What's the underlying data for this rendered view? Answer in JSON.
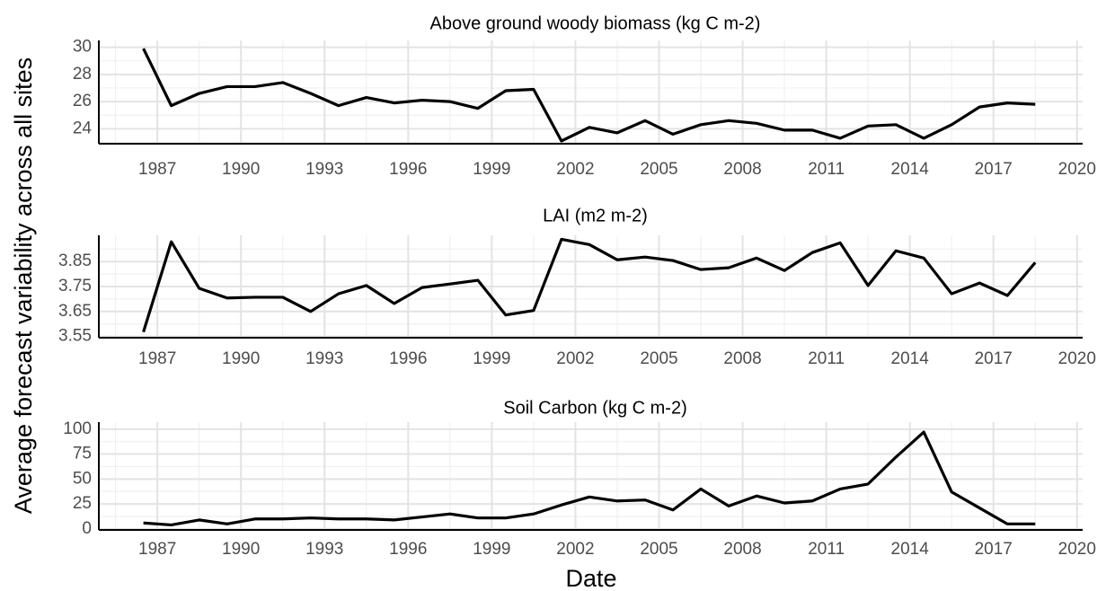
{
  "axis_labels": {
    "x": "Date",
    "y": "Average forecast variability across all sites"
  },
  "chart_data": [
    {
      "type": "line",
      "title": "Above ground woody biomass (kg C m-2)",
      "x": [
        1986.5,
        1987.5,
        1988.5,
        1989.5,
        1990.5,
        1991.5,
        1992.5,
        1993.5,
        1994.5,
        1995.5,
        1996.5,
        1997.5,
        1998.5,
        1999.5,
        2000.5,
        2001.5,
        2002.5,
        2003.5,
        2004.5,
        2005.5,
        2006.5,
        2007.5,
        2008.5,
        2009.5,
        2010.5,
        2011.5,
        2012.5,
        2013.5,
        2014.5,
        2015.5,
        2016.5,
        2017.5,
        2018.5
      ],
      "series": [
        {
          "name": "Above ground woody biomass",
          "color": "#000000",
          "values": [
            29.9,
            25.7,
            26.6,
            27.1,
            27.1,
            27.4,
            26.6,
            25.7,
            26.3,
            25.9,
            26.1,
            26.0,
            25.5,
            26.8,
            26.9,
            23.1,
            24.1,
            23.7,
            24.6,
            23.6,
            24.3,
            24.6,
            24.4,
            23.9,
            23.9,
            23.3,
            24.2,
            24.3,
            23.3,
            24.3,
            25.6,
            25.9,
            25.8
          ]
        }
      ],
      "xlim": [
        1984.9,
        2020.2
      ],
      "xticks": [
        1987,
        1990,
        1993,
        1996,
        1999,
        2002,
        2005,
        2008,
        2011,
        2014,
        2017,
        2020
      ],
      "ylim": [
        22.9,
        30.5
      ],
      "yticks": [
        24,
        26,
        28,
        30
      ],
      "grid": true
    },
    {
      "type": "line",
      "title": "LAI (m2 m-2)",
      "x": [
        1986.5,
        1987.5,
        1988.5,
        1989.5,
        1990.5,
        1991.5,
        1992.5,
        1993.5,
        1994.5,
        1995.5,
        1996.5,
        1997.5,
        1998.5,
        1999.5,
        2000.5,
        2001.5,
        2002.5,
        2003.5,
        2004.5,
        2005.5,
        2006.5,
        2007.5,
        2008.5,
        2009.5,
        2010.5,
        2011.5,
        2012.5,
        2013.5,
        2014.5,
        2015.5,
        2016.5,
        2017.5,
        2018.5
      ],
      "series": [
        {
          "name": "LAI",
          "color": "#000000",
          "values": [
            3.568,
            3.929,
            3.743,
            3.704,
            3.707,
            3.707,
            3.65,
            3.721,
            3.754,
            3.682,
            3.746,
            3.76,
            3.775,
            3.636,
            3.654,
            3.939,
            3.918,
            3.857,
            3.868,
            3.854,
            3.818,
            3.825,
            3.864,
            3.814,
            3.886,
            3.925,
            3.754,
            3.893,
            3.864,
            3.721,
            3.764,
            3.714,
            3.846
          ]
        }
      ],
      "xlim": [
        1984.9,
        2020.2
      ],
      "xticks": [
        1987,
        1990,
        1993,
        1996,
        1999,
        2002,
        2005,
        2008,
        2011,
        2014,
        2017,
        2020
      ],
      "ylim": [
        3.545,
        3.955
      ],
      "yticks": [
        3.55,
        3.65,
        3.75,
        3.85
      ],
      "grid": true
    },
    {
      "type": "line",
      "title": "Soil Carbon (kg C m-2)",
      "x": [
        1986.5,
        1987.5,
        1988.5,
        1989.5,
        1990.5,
        1991.5,
        1992.5,
        1993.5,
        1994.5,
        1995.5,
        1996.5,
        1997.5,
        1998.5,
        1999.5,
        2000.5,
        2001.5,
        2002.5,
        2003.5,
        2004.5,
        2005.5,
        2006.5,
        2007.5,
        2008.5,
        2009.5,
        2010.5,
        2011.5,
        2012.5,
        2013.5,
        2014.5,
        2015.5,
        2016.5,
        2017.5,
        2018.5
      ],
      "series": [
        {
          "name": "Soil Carbon",
          "color": "#000000",
          "values": [
            6,
            4,
            9,
            5,
            10,
            10,
            11,
            10,
            10,
            9,
            12,
            15,
            11,
            11,
            15,
            24,
            32,
            28,
            29,
            19,
            40,
            23,
            33,
            26,
            28,
            40,
            45,
            72,
            97,
            37,
            21,
            5,
            5
          ]
        }
      ],
      "xlim": [
        1984.9,
        2020.2
      ],
      "xticks": [
        1987,
        1990,
        1993,
        1996,
        1999,
        2002,
        2005,
        2008,
        2011,
        2014,
        2017,
        2020
      ],
      "ylim": [
        -1,
        107
      ],
      "yticks": [
        0,
        25,
        50,
        75,
        100
      ],
      "grid": true
    }
  ]
}
